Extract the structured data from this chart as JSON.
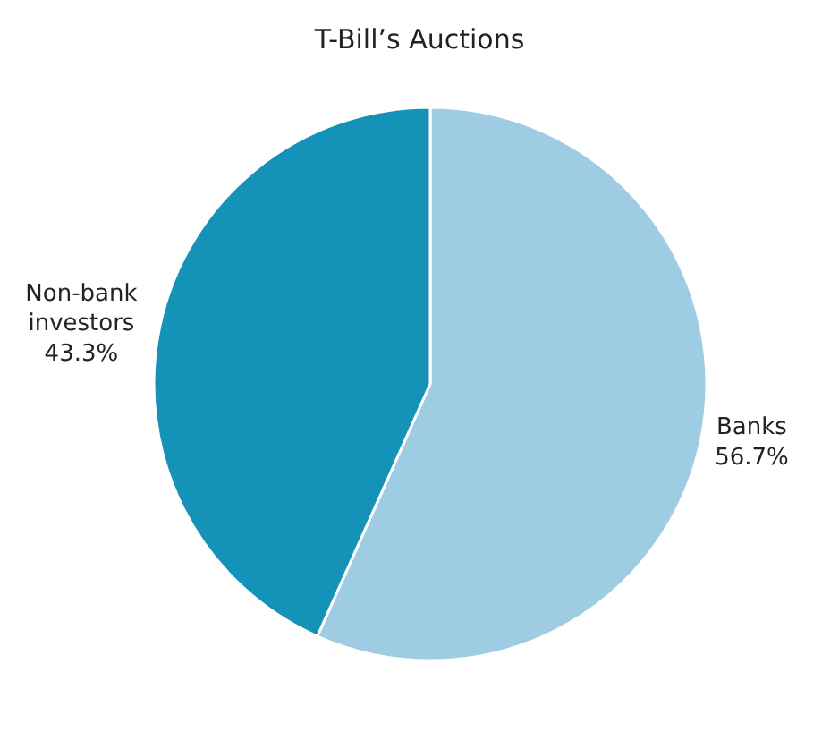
{
  "chart_data": {
    "type": "pie",
    "title": "T-Bill’s Auctions",
    "categories": [
      "Banks",
      "Non-bank\ninvestors"
    ],
    "values": [
      56.7,
      43.3
    ],
    "value_labels": [
      "56.7%",
      "43.3%"
    ],
    "colors": [
      "#9ecde3",
      "#1492b8"
    ],
    "legend": false
  }
}
